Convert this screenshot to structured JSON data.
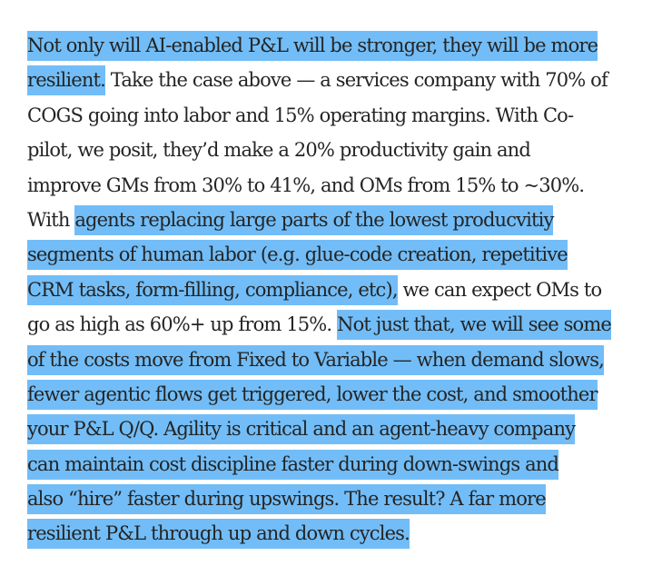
{
  "paragraph": {
    "lines": [
      [
        {
          "text": "Not only will AI-enabled P&L will be stronger, they will be more",
          "highlight": true
        }
      ],
      [
        {
          "text": "resilient.",
          "highlight": true
        },
        {
          "text": " Take the case above — a services company with 70% of",
          "highlight": false
        }
      ],
      [
        {
          "text": "COGS going into labor and 15% operating margins. With Co-",
          "highlight": false
        }
      ],
      [
        {
          "text": "pilot, we posit, they’d make a 20% productivity gain and",
          "highlight": false
        }
      ],
      [
        {
          "text": "improve GMs from 30% to 41%, and OMs from 15% to ~30%.",
          "highlight": false
        }
      ],
      [
        {
          "text": "With ",
          "highlight": false
        },
        {
          "text": "agents replacing large parts of the lowest producvitiy",
          "highlight": true
        }
      ],
      [
        {
          "text": "segments of human labor (e.g. glue-code creation, repetitive",
          "highlight": true
        }
      ],
      [
        {
          "text": "CRM tasks, form-filling, compliance, etc),",
          "highlight": true
        },
        {
          "text": " we can expect OMs to",
          "highlight": false
        }
      ],
      [
        {
          "text": "go as high as 60%+ up from 15%. ",
          "highlight": false
        },
        {
          "text": "Not just that, we will see some",
          "highlight": true
        }
      ],
      [
        {
          "text": "of the costs move from Fixed to Variable — when demand slows,",
          "highlight": true
        }
      ],
      [
        {
          "text": "fewer agentic flows get triggered, lower the cost, and smoother",
          "highlight": true
        }
      ],
      [
        {
          "text": "your P&L Q/Q. Agility is critical and an agent-heavy company",
          "highlight": true
        }
      ],
      [
        {
          "text": "can maintain cost discipline faster during down-swings and",
          "highlight": true
        }
      ],
      [
        {
          "text": "also “hire” faster during upswings. The result? A far more",
          "highlight": true
        }
      ],
      [
        {
          "text": "resilient P&L through up and down cycles.",
          "highlight": true
        }
      ]
    ]
  },
  "colors": {
    "text": "#242424",
    "highlight": "#72bdf7",
    "background": "#ffffff"
  }
}
